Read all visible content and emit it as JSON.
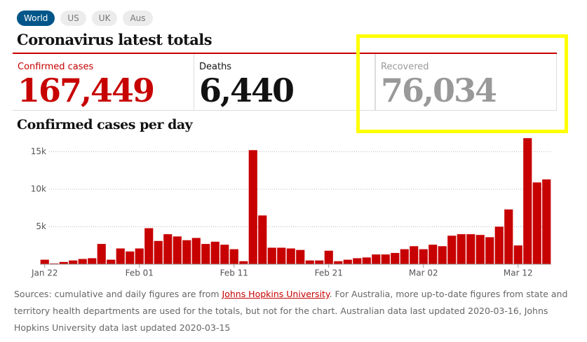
{
  "tabs": [
    "World",
    "US",
    "UK",
    "Aus"
  ],
  "title": "Coronavirus latest totals",
  "totals": [
    {
      "label": "Confirmed cases",
      "value": "167,449"
    },
    {
      "label": "Deaths",
      "value": "6,440"
    },
    {
      "label": "Recovered",
      "value": "76,034"
    }
  ],
  "chart_data": {
    "type": "bar",
    "title": "Confirmed cases per day",
    "color": "#c70000",
    "categories": [
      "Jan 22",
      null,
      null,
      null,
      null,
      null,
      null,
      null,
      null,
      null,
      "Feb 01",
      null,
      null,
      null,
      null,
      null,
      null,
      null,
      null,
      null,
      "Feb 11",
      null,
      null,
      null,
      null,
      null,
      null,
      null,
      null,
      null,
      "Feb 21",
      null,
      null,
      null,
      null,
      null,
      null,
      null,
      null,
      null,
      "Mar 02",
      null,
      null,
      null,
      null,
      null,
      null,
      null,
      null,
      null,
      "Mar 12",
      null,
      null,
      null
    ],
    "values": [
      600,
      100,
      300,
      500,
      700,
      800,
      2700,
      600,
      2100,
      1700,
      2100,
      4800,
      3100,
      4000,
      3700,
      3200,
      3500,
      2700,
      3000,
      2600,
      2000,
      400,
      15200,
      6500,
      2200,
      2200,
      2100,
      1900,
      500,
      500,
      1800,
      400,
      600,
      800,
      900,
      1300,
      1300,
      1500,
      2000,
      2400,
      2000,
      2600,
      2400,
      3800,
      4000,
      4000,
      3900,
      3600,
      5000,
      7300,
      2500,
      16800,
      10900,
      11300
    ],
    "ylim": [
      0,
      17000
    ],
    "yticks": [
      {
        "value": 5000,
        "label": "5k"
      },
      {
        "value": 10000,
        "label": "10k"
      },
      {
        "value": 15000,
        "label": "15k"
      }
    ],
    "grid": true
  },
  "footer": {
    "text_before": "Sources: cumulative and daily figures are from ",
    "link": "Johns Hopkins University",
    "text_after": ". For Australia, more up-to-date figures from state and territory health departments are used for the totals, but not for the chart. Australian data last updated 2020-03-16, Johns Hopkins University data last updated 2020-03-15"
  }
}
